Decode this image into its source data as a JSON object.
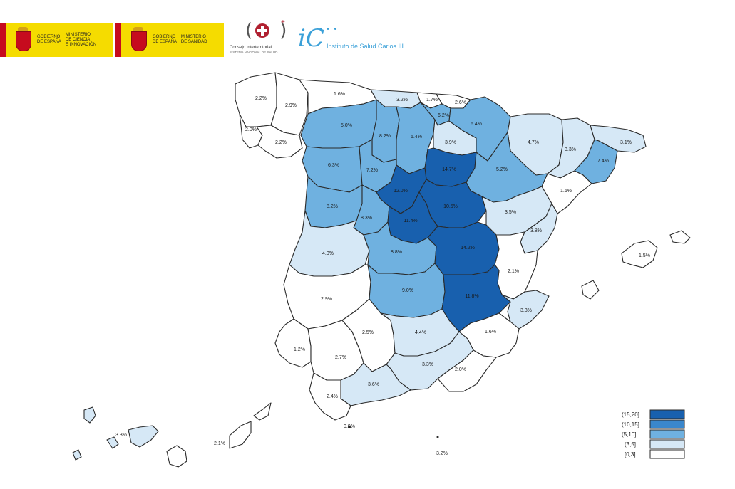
{
  "header": {
    "logo1": {
      "line1": "GOBIERNO",
      "line2": "DE ESPAÑA",
      "ministry1": "MINISTERIO",
      "ministry2": "DE CIENCIA",
      "ministry3": "E INNOVACIÓN"
    },
    "logo2": {
      "line1": "GOBIERNO",
      "line2": "DE ESPAÑA",
      "ministry1": "MINISTERIO",
      "ministry2": "DE SANIDAD",
      "ministry3": ""
    },
    "cis": {
      "name": "Consejo Interterritorial",
      "sub": "SISTEMA NACIONAL DE SALUD"
    },
    "isc": {
      "name": "Instituto de Salud Carlos III"
    }
  },
  "colors": {
    "c0": "#ffffff",
    "c1": "#d6e8f6",
    "c2": "#6fb1e0",
    "c3": "#3a87cc",
    "c4": "#1860ae",
    "stroke": "#2a2a2a"
  },
  "map": {
    "regions": [
      {
        "id": "a-coruna",
        "label": "2.2%",
        "cls": 0
      },
      {
        "id": "lugo",
        "label": "2.9%",
        "cls": 0
      },
      {
        "id": "pontevedra",
        "label": "2.0%",
        "cls": 0
      },
      {
        "id": "ourense",
        "label": "2.2%",
        "cls": 0
      },
      {
        "id": "asturias",
        "label": "1.6%",
        "cls": 0
      },
      {
        "id": "cantabria",
        "label": "3.2%",
        "cls": 1
      },
      {
        "id": "bizkaia",
        "label": "1.7%",
        "cls": 0
      },
      {
        "id": "gipuzkoa",
        "label": "2.6%",
        "cls": 0
      },
      {
        "id": "leon",
        "label": "5.0%",
        "cls": 2
      },
      {
        "id": "palencia",
        "label": "8.2%",
        "cls": 2
      },
      {
        "id": "burgos",
        "label": "5.4%",
        "cls": 2
      },
      {
        "id": "alava",
        "label": "6.2%",
        "cls": 2
      },
      {
        "id": "la-rioja",
        "label": "3.9%",
        "cls": 1
      },
      {
        "id": "navarra",
        "label": "6.4%",
        "cls": 2
      },
      {
        "id": "huesca",
        "label": "4.7%",
        "cls": 1
      },
      {
        "id": "lleida",
        "label": "3.3%",
        "cls": 1
      },
      {
        "id": "girona",
        "label": "3.1%",
        "cls": 1
      },
      {
        "id": "barcelona",
        "label": "7.4%",
        "cls": 2
      },
      {
        "id": "zamora",
        "label": "6.3%",
        "cls": 2
      },
      {
        "id": "valladolid",
        "label": "7.2%",
        "cls": 2
      },
      {
        "id": "soria",
        "label": "14.7%",
        "cls": 4
      },
      {
        "id": "zaragoza",
        "label": "5.2%",
        "cls": 2
      },
      {
        "id": "tarragona",
        "label": "1.6%",
        "cls": 0
      },
      {
        "id": "segovia",
        "label": "12.0%",
        "cls": 4
      },
      {
        "id": "guadalajara",
        "label": "10.5%",
        "cls": 4
      },
      {
        "id": "salamanca",
        "label": "8.2%",
        "cls": 2
      },
      {
        "id": "avila",
        "label": "8.3%",
        "cls": 2
      },
      {
        "id": "madrid",
        "label": "11.4%",
        "cls": 4
      },
      {
        "id": "teruel",
        "label": "3.5%",
        "cls": 1
      },
      {
        "id": "castellon",
        "label": "3.8%",
        "cls": 1
      },
      {
        "id": "caceres",
        "label": "4.0%",
        "cls": 1
      },
      {
        "id": "toledo",
        "label": "8.8%",
        "cls": 2
      },
      {
        "id": "cuenca",
        "label": "14.2%",
        "cls": 4
      },
      {
        "id": "valencia",
        "label": "2.1%",
        "cls": 0
      },
      {
        "id": "badajoz",
        "label": "2.9%",
        "cls": 0
      },
      {
        "id": "ciudad-real",
        "label": "9.0%",
        "cls": 2
      },
      {
        "id": "albacete",
        "label": "11.8%",
        "cls": 4
      },
      {
        "id": "alicante",
        "label": "3.3%",
        "cls": 1
      },
      {
        "id": "huelva",
        "label": "1.2%",
        "cls": 0
      },
      {
        "id": "sevilla",
        "label": "2.7%",
        "cls": 0
      },
      {
        "id": "cordoba",
        "label": "2.5%",
        "cls": 0
      },
      {
        "id": "jaen",
        "label": "4.4%",
        "cls": 1
      },
      {
        "id": "murcia",
        "label": "1.6%",
        "cls": 0
      },
      {
        "id": "granada",
        "label": "3.3%",
        "cls": 1
      },
      {
        "id": "almeria",
        "label": "2.0%",
        "cls": 0
      },
      {
        "id": "malaga",
        "label": "3.6%",
        "cls": 1
      },
      {
        "id": "cadiz",
        "label": "2.4%",
        "cls": 0
      },
      {
        "id": "baleares",
        "label": "1.5%",
        "cls": 0
      },
      {
        "id": "santa-cruz",
        "label": "3.3%",
        "cls": 1
      },
      {
        "id": "las-palmas",
        "label": "2.1%",
        "cls": 0
      }
    ],
    "extra_labels": [
      {
        "id": "ceuta",
        "label": "0.9%"
      },
      {
        "id": "melilla",
        "label": "3.2%"
      }
    ]
  },
  "legend": {
    "items": [
      "(15,20]",
      "(10,15]",
      "(5,10]",
      "(3,5]",
      "[0,3]"
    ]
  }
}
